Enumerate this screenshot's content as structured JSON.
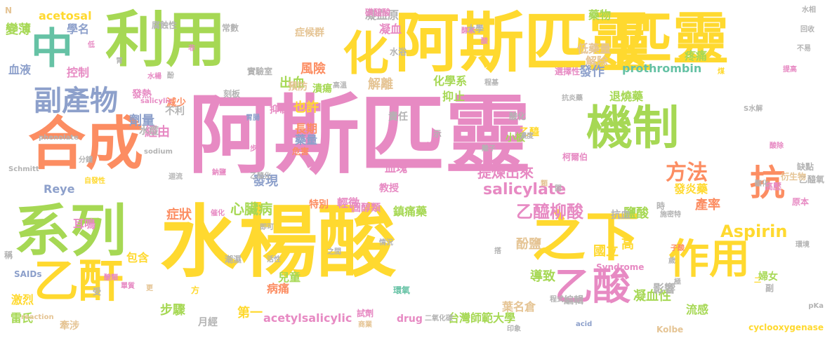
{
  "palette": {
    "yellow": "#FFD92F",
    "pink": "#E78AC3",
    "green": "#A6D854",
    "orange": "#FC8D62",
    "teal": "#66C2A5",
    "blue": "#8DA0CB",
    "tan": "#E5C494",
    "grey": "#B3B3B3"
  },
  "words": [
    {
      "text": "阿斯匹靈",
      "color": "pink"
    },
    {
      "text": "水楊酸",
      "color": "yellow"
    },
    {
      "text": "阿斯匹靈",
      "color": "yellow"
    },
    {
      "text": "利用",
      "color": "green"
    },
    {
      "text": "合成",
      "color": "orange"
    },
    {
      "text": "系列",
      "color": "green"
    },
    {
      "text": "機制",
      "color": "green"
    },
    {
      "text": "匹靈",
      "color": "yellow"
    },
    {
      "text": "之下",
      "color": "yellow"
    },
    {
      "text": "乙酐",
      "color": "yellow"
    },
    {
      "text": "中",
      "color": "teal"
    },
    {
      "text": "化",
      "color": "yellow"
    },
    {
      "text": "抗",
      "color": "orange"
    },
    {
      "text": "作用",
      "color": "yellow"
    },
    {
      "text": "乙酸",
      "color": "pink"
    },
    {
      "text": "副產物",
      "color": "blue"
    },
    {
      "text": "方法",
      "color": "orange"
    },
    {
      "text": "Aspirin",
      "color": "yellow"
    },
    {
      "text": "乙醯柳酸",
      "color": "pink"
    },
    {
      "text": "salicylate",
      "color": "pink"
    },
    {
      "text": "提煉出來",
      "color": "pink"
    },
    {
      "text": "心臟病",
      "color": "green"
    },
    {
      "text": "症狀",
      "color": "orange"
    },
    {
      "text": "發現",
      "color": "blue"
    },
    {
      "text": "劑量",
      "color": "blue"
    },
    {
      "text": "經由",
      "color": "pink"
    },
    {
      "text": "步驟",
      "color": "green"
    },
    {
      "text": "第一",
      "color": "yellow"
    },
    {
      "text": "acetylsalicylic",
      "color": "pink"
    },
    {
      "text": "drug",
      "color": "pink"
    },
    {
      "text": "台灣師範大學",
      "color": "green"
    },
    {
      "text": "導致",
      "color": "green"
    },
    {
      "text": "酚鹽",
      "color": "tan"
    },
    {
      "text": "鹽酸",
      "color": "green"
    },
    {
      "text": "產率",
      "color": "orange"
    },
    {
      "text": "國立",
      "color": "yellow"
    },
    {
      "text": "高",
      "color": "yellow"
    },
    {
      "text": "凝血性",
      "color": "green"
    },
    {
      "text": "prothrombin",
      "color": "teal"
    },
    {
      "text": "退燒藥",
      "color": "green"
    },
    {
      "text": "疼痛",
      "color": "green"
    },
    {
      "text": "藥物",
      "color": "green"
    },
    {
      "text": "低藥量",
      "color": "tan"
    },
    {
      "text": "解除",
      "color": "tan"
    },
    {
      "text": "發作",
      "color": "blue"
    },
    {
      "text": "風險",
      "color": "orange"
    },
    {
      "text": "出血",
      "color": "green"
    },
    {
      "text": "也許",
      "color": "yellow"
    },
    {
      "text": "解離",
      "color": "tan"
    },
    {
      "text": "化學系",
      "color": "green"
    },
    {
      "text": "acetosal",
      "color": "yellow"
    },
    {
      "text": "變薄",
      "color": "green"
    },
    {
      "text": "學名",
      "color": "blue"
    },
    {
      "text": "控制",
      "color": "pink"
    },
    {
      "text": "血液",
      "color": "blue"
    },
    {
      "text": "凝血原",
      "color": "grey"
    },
    {
      "text": "凝血",
      "color": "pink"
    },
    {
      "text": "症候群",
      "color": "tan"
    },
    {
      "text": "預防",
      "color": "tan"
    },
    {
      "text": "潰瘍",
      "color": "green"
    },
    {
      "text": "抑止",
      "color": "green"
    },
    {
      "text": "責任",
      "color": "grey"
    },
    {
      "text": "長期",
      "color": "orange"
    },
    {
      "text": "藥量",
      "color": "blue"
    },
    {
      "text": "血塊",
      "color": "pink"
    },
    {
      "text": "教授",
      "color": "pink"
    },
    {
      "text": "輕微",
      "color": "pink"
    },
    {
      "text": "鎮痛藥",
      "color": "green"
    },
    {
      "text": "特別",
      "color": "orange"
    },
    {
      "text": "固醇類",
      "color": "pink"
    },
    {
      "text": "乙醯",
      "color": "yellow"
    },
    {
      "text": "小板",
      "color": "green"
    },
    {
      "text": "抗血",
      "color": "grey"
    },
    {
      "text": "發炎藥",
      "color": "yellow"
    },
    {
      "text": "影響",
      "color": "grey"
    },
    {
      "text": "婦女",
      "color": "green"
    },
    {
      "text": "編輯",
      "color": "grey"
    },
    {
      "text": "葉名倉",
      "color": "tan"
    },
    {
      "text": "流感",
      "color": "green"
    },
    {
      "text": "病痛",
      "color": "orange"
    },
    {
      "text": "兒童",
      "color": "green"
    },
    {
      "text": "耳鳴",
      "color": "pink"
    },
    {
      "text": "包含",
      "color": "yellow"
    },
    {
      "text": "激烈",
      "color": "yellow"
    },
    {
      "text": "雷氏",
      "color": "green"
    },
    {
      "text": "牽涉",
      "color": "tan"
    },
    {
      "text": "月經",
      "color": "grey"
    },
    {
      "text": "Reye",
      "color": "blue"
    },
    {
      "text": "水痘",
      "color": "grey"
    },
    {
      "text": "發熱",
      "color": "pink"
    },
    {
      "text": "減少",
      "color": "orange"
    },
    {
      "text": "不利",
      "color": "grey"
    },
    {
      "text": "抑制",
      "color": "pink"
    },
    {
      "text": "胃腸",
      "color": "blue"
    },
    {
      "text": "刻板",
      "color": "grey"
    },
    {
      "text": "環氧",
      "color": "teal"
    },
    {
      "text": "SAIDs",
      "color": "blue"
    },
    {
      "text": "salicylic",
      "color": "pink"
    },
    {
      "text": "phenolate",
      "color": "grey"
    },
    {
      "text": "sodium",
      "color": "grey"
    },
    {
      "text": "Schmitt",
      "color": "grey"
    },
    {
      "text": "Kolbe",
      "color": "tan"
    },
    {
      "text": "cyclooxygenase",
      "color": "yellow"
    },
    {
      "text": "Syndrome",
      "color": "pink"
    },
    {
      "text": "reaction",
      "color": "tan"
    },
    {
      "text": "acid",
      "color": "blue"
    },
    {
      "text": "pKa",
      "color": "grey"
    },
    {
      "text": "N",
      "color": "tan"
    },
    {
      "text": "磺醯酸",
      "color": "pink"
    },
    {
      "text": "酵素",
      "color": "pink"
    },
    {
      "text": "腐蝕性",
      "color": "grey"
    },
    {
      "text": "常數",
      "color": "grey"
    },
    {
      "text": "水浴",
      "color": "grey"
    },
    {
      "text": "選擇性",
      "color": "pink"
    },
    {
      "text": "實驗室",
      "color": "grey"
    },
    {
      "text": "高溫",
      "color": "grey"
    },
    {
      "text": "程基",
      "color": "grey"
    },
    {
      "text": "抗炎藥",
      "color": "grey"
    },
    {
      "text": "酸化",
      "color": "grey"
    },
    {
      "text": "濃度",
      "color": "grey"
    },
    {
      "text": "離子",
      "color": "grey"
    },
    {
      "text": "柯爾伯",
      "color": "pink"
    },
    {
      "text": "危害",
      "color": "orange"
    },
    {
      "text": "乙醯氧",
      "color": "grey"
    },
    {
      "text": "缺點",
      "color": "grey"
    },
    {
      "text": "衍生物",
      "color": "tan"
    },
    {
      "text": "高壓",
      "color": "pink"
    },
    {
      "text": "酯化",
      "color": "grey"
    },
    {
      "text": "原本",
      "color": "pink"
    },
    {
      "text": "時",
      "color": "grey"
    },
    {
      "text": "施密特",
      "color": "grey"
    },
    {
      "text": "情況",
      "color": "grey"
    },
    {
      "text": "即可",
      "color": "grey"
    },
    {
      "text": "催化",
      "color": "pink"
    },
    {
      "text": "乙醯化",
      "color": "grey"
    },
    {
      "text": "鈉鹽",
      "color": "pink"
    },
    {
      "text": "迴流",
      "color": "grey"
    },
    {
      "text": "分鐘",
      "color": "grey"
    },
    {
      "text": "自發性",
      "color": "yellow"
    },
    {
      "text": "水相",
      "color": "grey"
    },
    {
      "text": "回收",
      "color": "grey"
    },
    {
      "text": "不易",
      "color": "grey"
    },
    {
      "text": "提高",
      "color": "pink"
    },
    {
      "text": "環境",
      "color": "grey"
    },
    {
      "text": "子酸",
      "color": "orange"
    },
    {
      "text": "極",
      "color": "grey"
    },
    {
      "text": "程式",
      "color": "grey"
    },
    {
      "text": "試劑",
      "color": "pink"
    },
    {
      "text": "商業",
      "color": "tan"
    },
    {
      "text": "二氧化碳",
      "color": "grey"
    },
    {
      "text": "印象",
      "color": "grey"
    },
    {
      "text": "大學",
      "color": "grey"
    },
    {
      "text": "醣類",
      "color": "pink"
    },
    {
      "text": "單質",
      "color": "pink"
    },
    {
      "text": "更",
      "color": "tan"
    },
    {
      "text": "活性",
      "color": "grey"
    },
    {
      "text": "之間",
      "color": "grey"
    },
    {
      "text": "受",
      "color": "grey"
    },
    {
      "text": "方",
      "color": "yellow"
    },
    {
      "text": "副",
      "color": "grey"
    },
    {
      "text": "二",
      "color": "yellow"
    },
    {
      "text": "低",
      "color": "pink"
    },
    {
      "text": "水楊",
      "color": "pink"
    },
    {
      "text": "胃",
      "color": "grey"
    },
    {
      "text": "酚",
      "color": "grey"
    },
    {
      "text": "非",
      "color": "pink"
    },
    {
      "text": "示",
      "color": "grey"
    },
    {
      "text": "述",
      "color": "pink"
    },
    {
      "text": "稱",
      "color": "grey"
    },
    {
      "text": "歲",
      "color": "grey"
    },
    {
      "text": "類",
      "color": "tan"
    },
    {
      "text": "酸",
      "color": "pink"
    },
    {
      "text": "閱",
      "color": "grey"
    },
    {
      "text": "步",
      "color": "pink"
    },
    {
      "text": "搭",
      "color": "grey"
    },
    {
      "text": "潮濕",
      "color": "grey"
    },
    {
      "text": "煤",
      "color": "yellow"
    },
    {
      "text": "S水解",
      "color": "grey"
    },
    {
      "text": "酸除",
      "color": "pink"
    }
  ]
}
